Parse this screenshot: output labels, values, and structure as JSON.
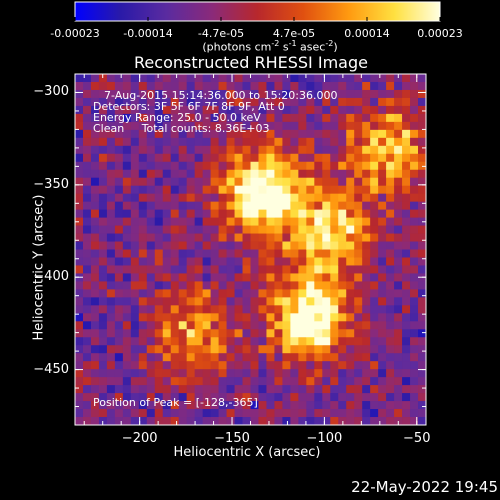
{
  "colorbar": {
    "tick_labels": [
      "-0.00023",
      "-0.00014",
      "-4.7e-05",
      "4.7e-05",
      "0.00014",
      "0.00023"
    ],
    "units_line1": "(photons cm",
    "units_exp1": "-2",
    "units_line2": " s",
    "units_exp2": "-1",
    "units_line3": " asec",
    "units_exp3": "-2",
    "units_close": ")",
    "colors": [
      "#0000ff",
      "#2a1aa8",
      "#5a2ba0",
      "#8a2a7a",
      "#b8282c",
      "#e05010",
      "#ff9a10",
      "#ffe040",
      "#ffffe0"
    ]
  },
  "info": {
    "line1": "7-Aug-2015 15:14:36.000 to 15:20:36.000",
    "line2": "Detectors: 3F 5F 6F 7F 8F 9F, Att 0",
    "line3": "Energy Range: 25.0 - 50.0 keV",
    "line4": "Clean     Total counts: 8.36E+03",
    "peak": "Position of Peak = [-128,-365]"
  },
  "footer": {
    "date": "22-May-2022 19:45"
  },
  "chart_data": {
    "type": "heatmap",
    "title": "Reconstructed RHESSI Image",
    "xlabel": "Heliocentric X (arcsec)",
    "ylabel": "Heliocentric Y (arcsec)",
    "xlim": [
      -235,
      -45
    ],
    "ylim": [
      -480,
      -290
    ],
    "xticks": [
      -200,
      -150,
      -100,
      -50
    ],
    "yticks": [
      -300,
      -350,
      -400,
      -450
    ],
    "xtick_labels": [
      "−200",
      "−150",
      "−100",
      "−50"
    ],
    "ytick_labels": [
      "−300",
      "−350",
      "−400",
      "−450"
    ],
    "zlim": [
      -0.00023,
      0.00023
    ],
    "peak_position": [
      -128,
      -365
    ],
    "bright_regions": [
      {
        "x": -133,
        "y": -353,
        "level": 0.95
      },
      {
        "x": -108,
        "y": -422,
        "level": 0.9
      },
      {
        "x": -95,
        "y": -375,
        "level": 0.65
      },
      {
        "x": -65,
        "y": -330,
        "level": 0.6
      },
      {
        "x": -170,
        "y": -430,
        "level": 0.5
      }
    ]
  }
}
